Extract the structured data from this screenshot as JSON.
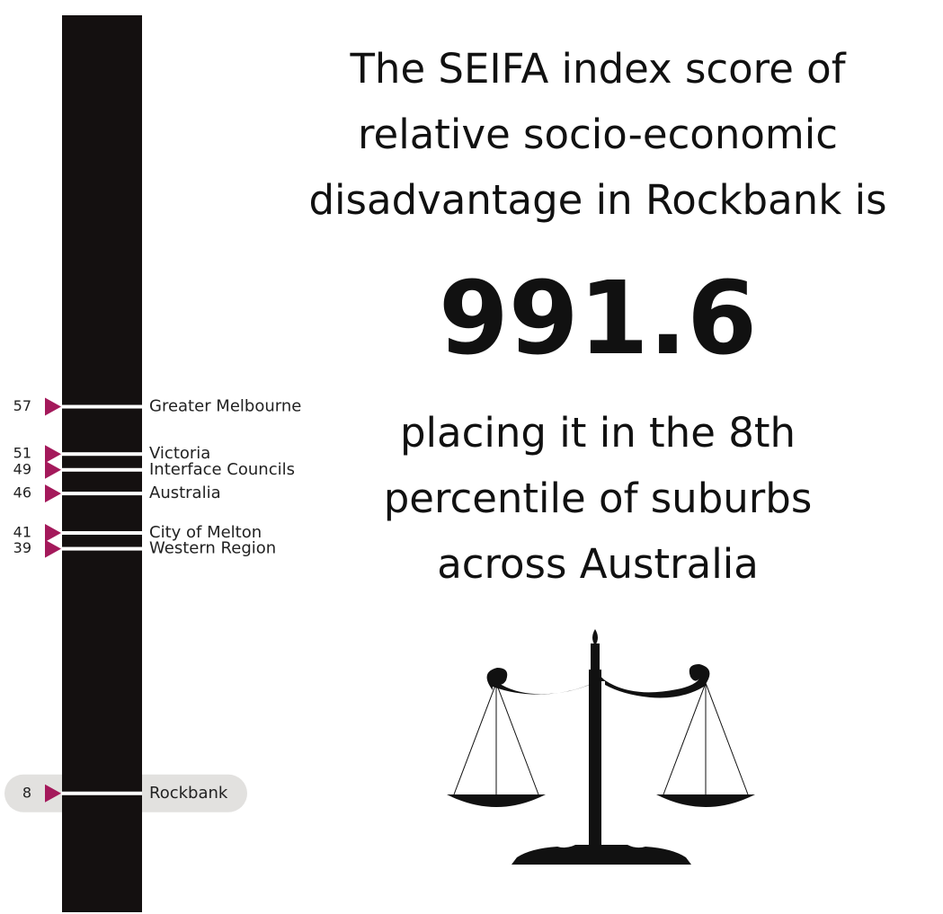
{
  "chart_data": {
    "type": "percentile-scale",
    "categories": [
      "Greater Melbourne",
      "Victoria",
      "Interface Councils",
      "Australia",
      "City of Melton",
      "Western Region",
      "Rockbank"
    ],
    "values": [
      57,
      51,
      49,
      46,
      41,
      39,
      8
    ],
    "ylim": [
      0,
      100
    ],
    "highlight": "Rockbank",
    "marker_color": "#a4195b",
    "bar_color": "#141010"
  },
  "text": {
    "heading": [
      "The SEIFA index score of",
      "relative socio-economic",
      "disadvantage in Rockbank is"
    ],
    "score": "991.6",
    "subheading": [
      "placing it in the 8th",
      "percentile of suburbs",
      "across Australia"
    ]
  }
}
